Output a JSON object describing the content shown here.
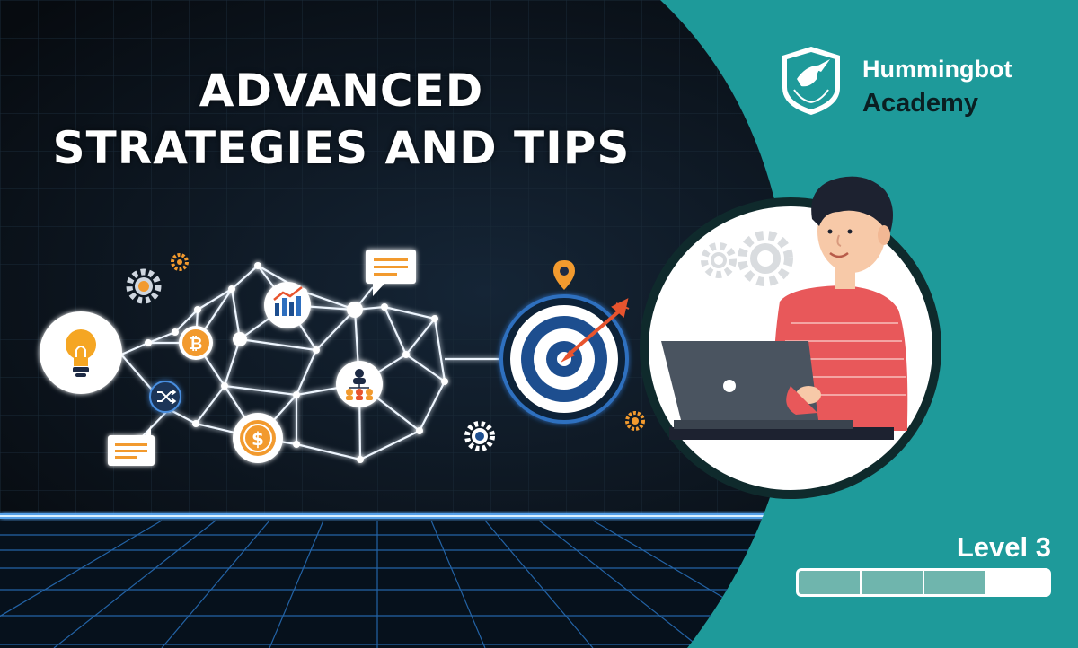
{
  "title": {
    "line1": "ADVANCED",
    "line2": "STRATEGIES AND TIPS"
  },
  "brand": {
    "name": "Hummingbot",
    "sub": "Academy"
  },
  "level": {
    "label": "Level 3",
    "segments_total": 4,
    "segments_filled": 3
  },
  "icons": {
    "bulb": "lightbulb-icon",
    "bitcoin": "bitcoin-icon",
    "chart": "chart-icon",
    "org": "org-chart-icon",
    "dollar": "dollar-coin-icon",
    "shuffle": "shuffle-icon",
    "target": "target-icon",
    "pin": "location-pin-icon"
  },
  "colors": {
    "background": "#0a1018",
    "teal": "#1e9a9a",
    "accent_orange": "#f29a2e",
    "brand_dark": "#0a1f22"
  }
}
